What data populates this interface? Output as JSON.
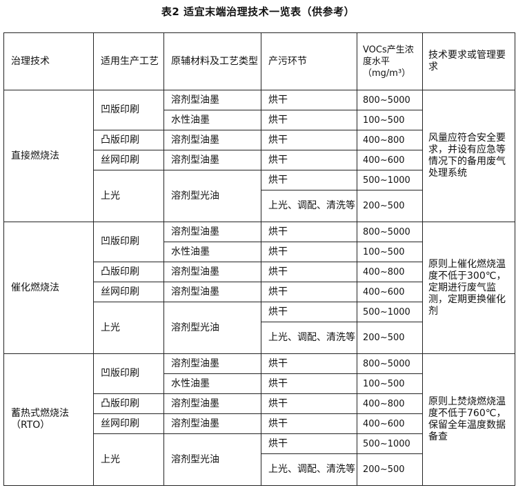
{
  "title": "表2 适宜末端治理技术一览表（供参考）",
  "headers": [
    "治理技术",
    "适用生产工艺",
    "原辅材料及工艺类型",
    "产污环节",
    "VOCs产生浓度水平（mg/m³）",
    "技术要求或管理要求"
  ],
  "groups": [
    {
      "technology": "直接燃烧法",
      "requirement": "风量应符合安全要求，并设有应急等情况下的备用废气处理系统",
      "rows": [
        {
          "process": "凹版印刷",
          "material": "溶剂型油墨",
          "stage": "烘干",
          "concentration": "800~5000"
        },
        {
          "material": "水性油墨",
          "stage": "烘干",
          "concentration": "100~500"
        },
        {
          "process": "凸版印刷",
          "material": "溶剂型油墨",
          "stage": "烘干",
          "concentration": "400~800"
        },
        {
          "process": "丝网印刷",
          "material": "溶剂型油墨",
          "stage": "烘干",
          "concentration": "400~600"
        },
        {
          "process": "上光",
          "material": "溶剂型光油",
          "stage": "烘干",
          "concentration": "500~1000"
        },
        {
          "stage": "上光、调配、清洗等",
          "concentration": "200~500"
        }
      ]
    },
    {
      "technology": "催化燃烧法",
      "requirement": "原则上催化燃烧温度不低于300℃，定期进行废气监测，定期更换催化剂",
      "rows": [
        {
          "process": "凹版印刷",
          "material": "溶剂型油墨",
          "stage": "烘干",
          "concentration": "800~5000"
        },
        {
          "material": "水性油墨",
          "stage": "烘干",
          "concentration": "100~500"
        },
        {
          "process": "凸版印刷",
          "material": "溶剂型油墨",
          "stage": "烘干",
          "concentration": "400~800"
        },
        {
          "process": "丝网印刷",
          "material": "溶剂型油墨",
          "stage": "烘干",
          "concentration": "400~600"
        },
        {
          "process": "上光",
          "material": "溶剂型光油",
          "stage": "烘干",
          "concentration": "500~1000"
        },
        {
          "stage": "上光、调配、清洗等",
          "concentration": "200~500"
        }
      ]
    },
    {
      "technology": "蓄热式燃烧法（RTO）",
      "requirement": "原则上焚烧燃烧温度不低于760℃，保留全年温度数据备查",
      "rows": [
        {
          "process": "凹版印刷",
          "material": "溶剂型油墨",
          "stage": "烘干",
          "concentration": "800~5000"
        },
        {
          "material": "水性油墨",
          "stage": "烘干",
          "concentration": "100~500"
        },
        {
          "process": "凸版印刷",
          "material": "溶剂型油墨",
          "stage": "烘干",
          "concentration": "400~800"
        },
        {
          "process": "丝网印刷",
          "material": "溶剂型油墨",
          "stage": "烘干",
          "concentration": "400~600"
        },
        {
          "process": "上光",
          "material": "溶剂型光油",
          "stage": "烘干",
          "concentration": "500~1000"
        },
        {
          "stage": "上光、调配、清洗等",
          "concentration": "200~500"
        }
      ]
    }
  ]
}
